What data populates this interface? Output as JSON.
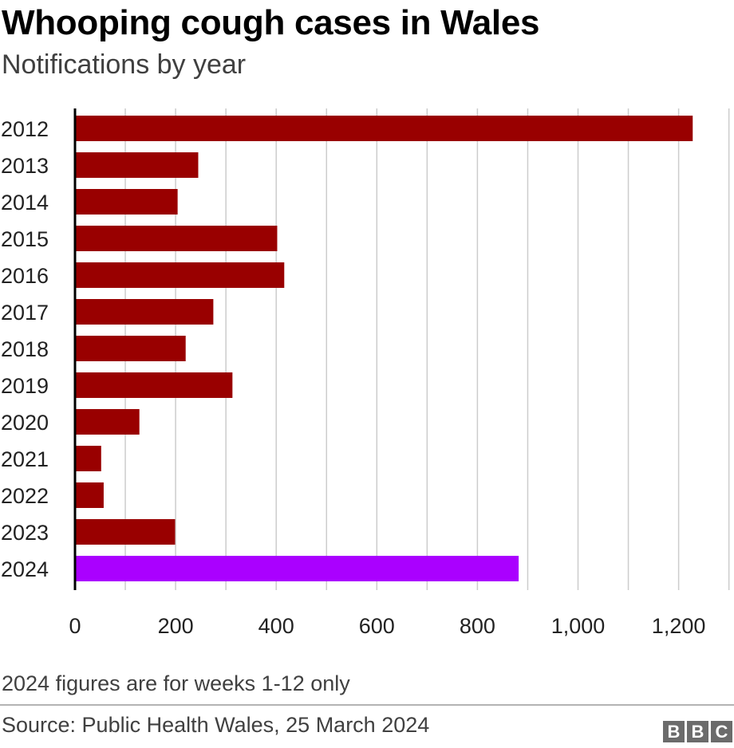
{
  "header": {
    "title": "Whooping cough cases in Wales",
    "subtitle": "Notifications by year"
  },
  "footer": {
    "note": "2024 figures are for weeks 1-12 only",
    "source": "Source: Public Health Wales, 25 March 2024",
    "logo_letters": [
      "B",
      "B",
      "C"
    ]
  },
  "colors": {
    "bar": "#990000",
    "highlight": "#aa00ff",
    "grid": "#cccccc",
    "axis": "#000000"
  },
  "chart_data": {
    "type": "bar",
    "orientation": "horizontal",
    "title": "Whooping cough cases in Wales",
    "subtitle": "Notifications by year",
    "categories": [
      "2012",
      "2013",
      "2014",
      "2015",
      "2016",
      "2017",
      "2018",
      "2019",
      "2020",
      "2021",
      "2022",
      "2023",
      "2024"
    ],
    "values": [
      1228,
      245,
      204,
      402,
      416,
      275,
      220,
      313,
      128,
      52,
      57,
      199,
      882
    ],
    "highlight": [
      "2024"
    ],
    "xlim": [
      0,
      1300
    ],
    "xticks": [
      0,
      200,
      400,
      600,
      800,
      1000,
      1200
    ],
    "xtick_labels": [
      "0",
      "200",
      "400",
      "600",
      "800",
      "1,000",
      "1,200"
    ],
    "grid": true
  }
}
